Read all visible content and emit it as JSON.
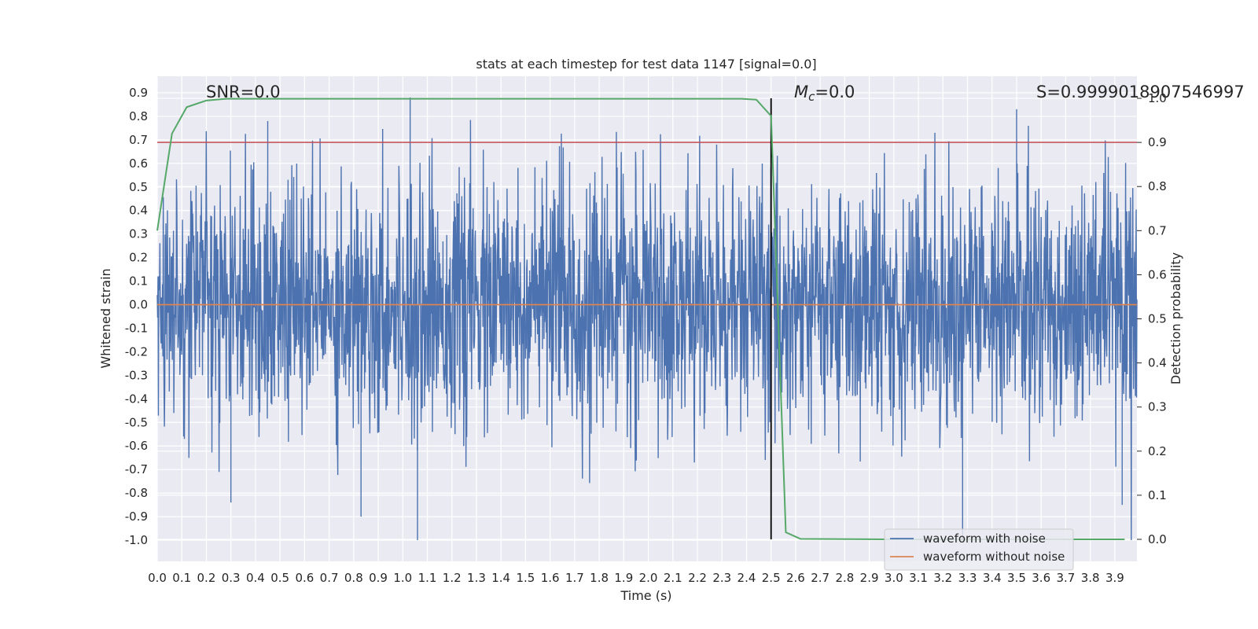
{
  "chart_data": {
    "type": "line",
    "title": "stats at each timestep for test data 1147 [signal=0.0]",
    "xlabel": "Time (s)",
    "ylabel": "Whitened strain",
    "y2label": "Detection probability",
    "xlim": [
      0.0,
      3.99
    ],
    "ylim": [
      -1.09,
      0.97
    ],
    "y2lim": [
      -0.05,
      1.05
    ],
    "xticks": [
      "0.0",
      "0.1",
      "0.2",
      "0.3",
      "0.4",
      "0.5",
      "0.6",
      "0.7",
      "0.8",
      "0.9",
      "1.0",
      "1.1",
      "1.2",
      "1.3",
      "1.4",
      "1.5",
      "1.6",
      "1.7",
      "1.8",
      "1.9",
      "2.0",
      "2.1",
      "2.2",
      "2.3",
      "2.4",
      "2.5",
      "2.6",
      "2.7",
      "2.8",
      "2.9",
      "3.0",
      "3.1",
      "3.2",
      "3.3",
      "3.4",
      "3.5",
      "3.6",
      "3.7",
      "3.8",
      "3.9"
    ],
    "yticks": [
      "0.9",
      "0.8",
      "0.7",
      "0.6",
      "0.5",
      "0.4",
      "0.3",
      "0.2",
      "0.1",
      "0.0",
      "-0.1",
      "-0.2",
      "-0.3",
      "-0.4",
      "-0.5",
      "-0.6",
      "-0.7",
      "-0.8",
      "-0.9",
      "-1.0"
    ],
    "y2ticks": [
      "1.0",
      "0.9",
      "0.8",
      "0.7",
      "0.6",
      "0.5",
      "0.4",
      "0.3",
      "0.2",
      "0.1",
      "0.0"
    ],
    "series": [
      {
        "name": "waveform with noise",
        "color": "#4c72b0",
        "description": "noisy whitened strain, random in [-1.0, 0.88]"
      },
      {
        "name": "waveform without noise",
        "color": "#dd8452",
        "values_constant": 0.0
      },
      {
        "name": "detection probability",
        "color": "#55a868",
        "axis": "right",
        "x": [
          0.0,
          0.06,
          0.12,
          0.2,
          0.28,
          0.4,
          1.0,
          2.0,
          2.38,
          2.44,
          2.5,
          2.56,
          2.62,
          3.0,
          3.5,
          3.94
        ],
        "y": [
          0.7,
          0.92,
          0.98,
          0.995,
          0.999,
          0.999,
          0.999,
          0.999,
          0.999,
          0.997,
          0.96,
          0.016,
          0.001,
          0.0,
          0.0,
          0.0
        ]
      }
    ],
    "threshold_line": {
      "value": 0.9,
      "axis": "right",
      "color": "#c44e52"
    },
    "vertical_line": {
      "x": 2.5,
      "color": "#000000"
    },
    "annotations": {
      "snr": "SNR=0.0",
      "mc": "M",
      "mc_sub": "c",
      "mc_rest": "=0.0",
      "s": "S=0.9999018907546997"
    },
    "legend": {
      "placement": "lower-right",
      "entries": [
        "waveform with noise",
        "waveform without noise"
      ]
    },
    "grid": true,
    "background": "#eaeaf2"
  }
}
